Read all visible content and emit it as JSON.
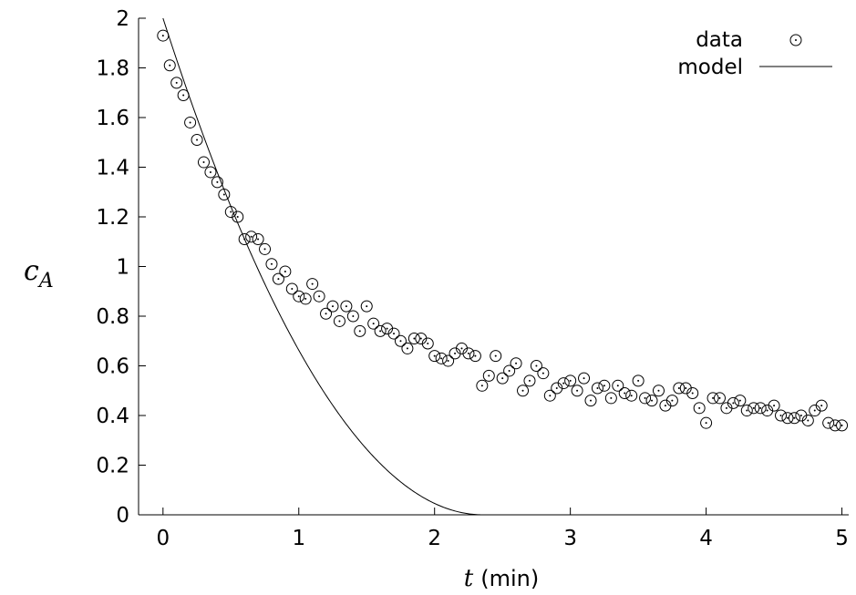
{
  "chart_data": {
    "type": "scatter",
    "xlabel_var": "t",
    "xlabel_unit": "(min)",
    "ylabel_var": "c",
    "ylabel_sub": "A",
    "xlim": [
      -0.18,
      5.05
    ],
    "ylim": [
      0,
      2
    ],
    "xticks": [
      0,
      1,
      2,
      3,
      4,
      5
    ],
    "xtick_labels": [
      "0",
      "1",
      "2",
      "3",
      "4",
      "5"
    ],
    "yticks": [
      0,
      0.2,
      0.4,
      0.6,
      0.8,
      1,
      1.2,
      1.4,
      1.6,
      1.8,
      2
    ],
    "ytick_labels": [
      "0",
      "0.2",
      "0.4",
      "0.6",
      "0.8",
      "1",
      "1.2",
      "1.4",
      "1.6",
      "1.8",
      "2"
    ],
    "grid": false,
    "legend_position": "top-right",
    "series": [
      {
        "name": "data",
        "style": "circle-dot",
        "x": [
          0.0,
          0.05,
          0.1,
          0.15,
          0.2,
          0.25,
          0.3,
          0.35,
          0.4,
          0.45,
          0.5,
          0.55,
          0.6,
          0.65,
          0.7,
          0.75,
          0.8,
          0.85,
          0.9,
          0.95,
          1.0,
          1.05,
          1.1,
          1.15,
          1.2,
          1.25,
          1.3,
          1.35,
          1.4,
          1.45,
          1.5,
          1.55,
          1.6,
          1.65,
          1.7,
          1.75,
          1.8,
          1.85,
          1.9,
          1.95,
          2.0,
          2.05,
          2.1,
          2.15,
          2.2,
          2.25,
          2.3,
          2.35,
          2.4,
          2.45,
          2.5,
          2.55,
          2.6,
          2.65,
          2.7,
          2.75,
          2.8,
          2.85,
          2.9,
          2.95,
          3.0,
          3.05,
          3.1,
          3.15,
          3.2,
          3.25,
          3.3,
          3.35,
          3.4,
          3.45,
          3.5,
          3.55,
          3.6,
          3.65,
          3.7,
          3.75,
          3.8,
          3.85,
          3.9,
          3.95,
          4.0,
          4.05,
          4.1,
          4.15,
          4.2,
          4.25,
          4.3,
          4.35,
          4.4,
          4.45,
          4.5,
          4.55,
          4.6,
          4.65,
          4.7,
          4.75,
          4.8,
          4.85,
          4.9,
          4.95,
          5.0
        ],
        "y": [
          1.93,
          1.81,
          1.74,
          1.69,
          1.58,
          1.51,
          1.42,
          1.38,
          1.34,
          1.29,
          1.22,
          1.2,
          1.11,
          1.12,
          1.11,
          1.07,
          1.01,
          0.95,
          0.98,
          0.91,
          0.88,
          0.87,
          0.93,
          0.88,
          0.81,
          0.84,
          0.78,
          0.84,
          0.8,
          0.74,
          0.84,
          0.77,
          0.74,
          0.75,
          0.73,
          0.7,
          0.67,
          0.71,
          0.71,
          0.69,
          0.64,
          0.63,
          0.62,
          0.65,
          0.67,
          0.65,
          0.64,
          0.52,
          0.56,
          0.64,
          0.55,
          0.58,
          0.61,
          0.5,
          0.54,
          0.6,
          0.57,
          0.48,
          0.51,
          0.53,
          0.54,
          0.5,
          0.55,
          0.46,
          0.51,
          0.52,
          0.47,
          0.52,
          0.49,
          0.48,
          0.54,
          0.47,
          0.46,
          0.5,
          0.44,
          0.46,
          0.51,
          0.51,
          0.49,
          0.43,
          0.37,
          0.47,
          0.47,
          0.43,
          0.45,
          0.46,
          0.42,
          0.43,
          0.43,
          0.42,
          0.44,
          0.4,
          0.39,
          0.39,
          0.4,
          0.38,
          0.42,
          0.44,
          0.37,
          0.36,
          0.36
        ]
      },
      {
        "name": "model",
        "style": "line",
        "equation": "y = (sqrt(2) - 0.6*t)^2 for t < 2.357, else 0",
        "x_range": [
          0,
          5
        ]
      }
    ]
  }
}
